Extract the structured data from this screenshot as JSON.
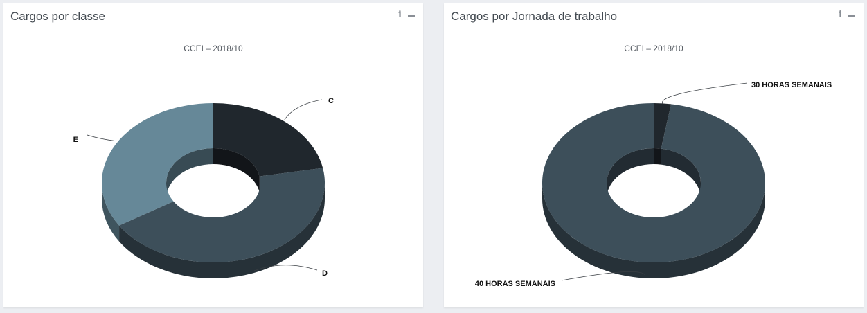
{
  "panels": [
    {
      "title": "Cargos por classe"
    },
    {
      "title": "Cargos por Jornada de trabalho"
    }
  ],
  "tools": {
    "info_label": "i"
  },
  "colors": {
    "c": "#20272d",
    "d": "#3d4f5a",
    "e": "#668898",
    "h30": "#20272d",
    "h40": "#3d4f5a"
  },
  "chart_data": [
    {
      "type": "pie",
      "variant": "3d-donut",
      "subtitle": "CCEI – 2018/10",
      "slices": [
        {
          "label": "C",
          "value": 22
        },
        {
          "label": "D",
          "value": 44
        },
        {
          "label": "E",
          "value": 34
        }
      ]
    },
    {
      "type": "pie",
      "variant": "3d-donut",
      "subtitle": "CCEI – 2018/10",
      "slices": [
        {
          "label": "30 HORAS SEMANAIS",
          "value": 2.5
        },
        {
          "label": "40 HORAS SEMANAIS",
          "value": 97.5
        }
      ]
    }
  ]
}
